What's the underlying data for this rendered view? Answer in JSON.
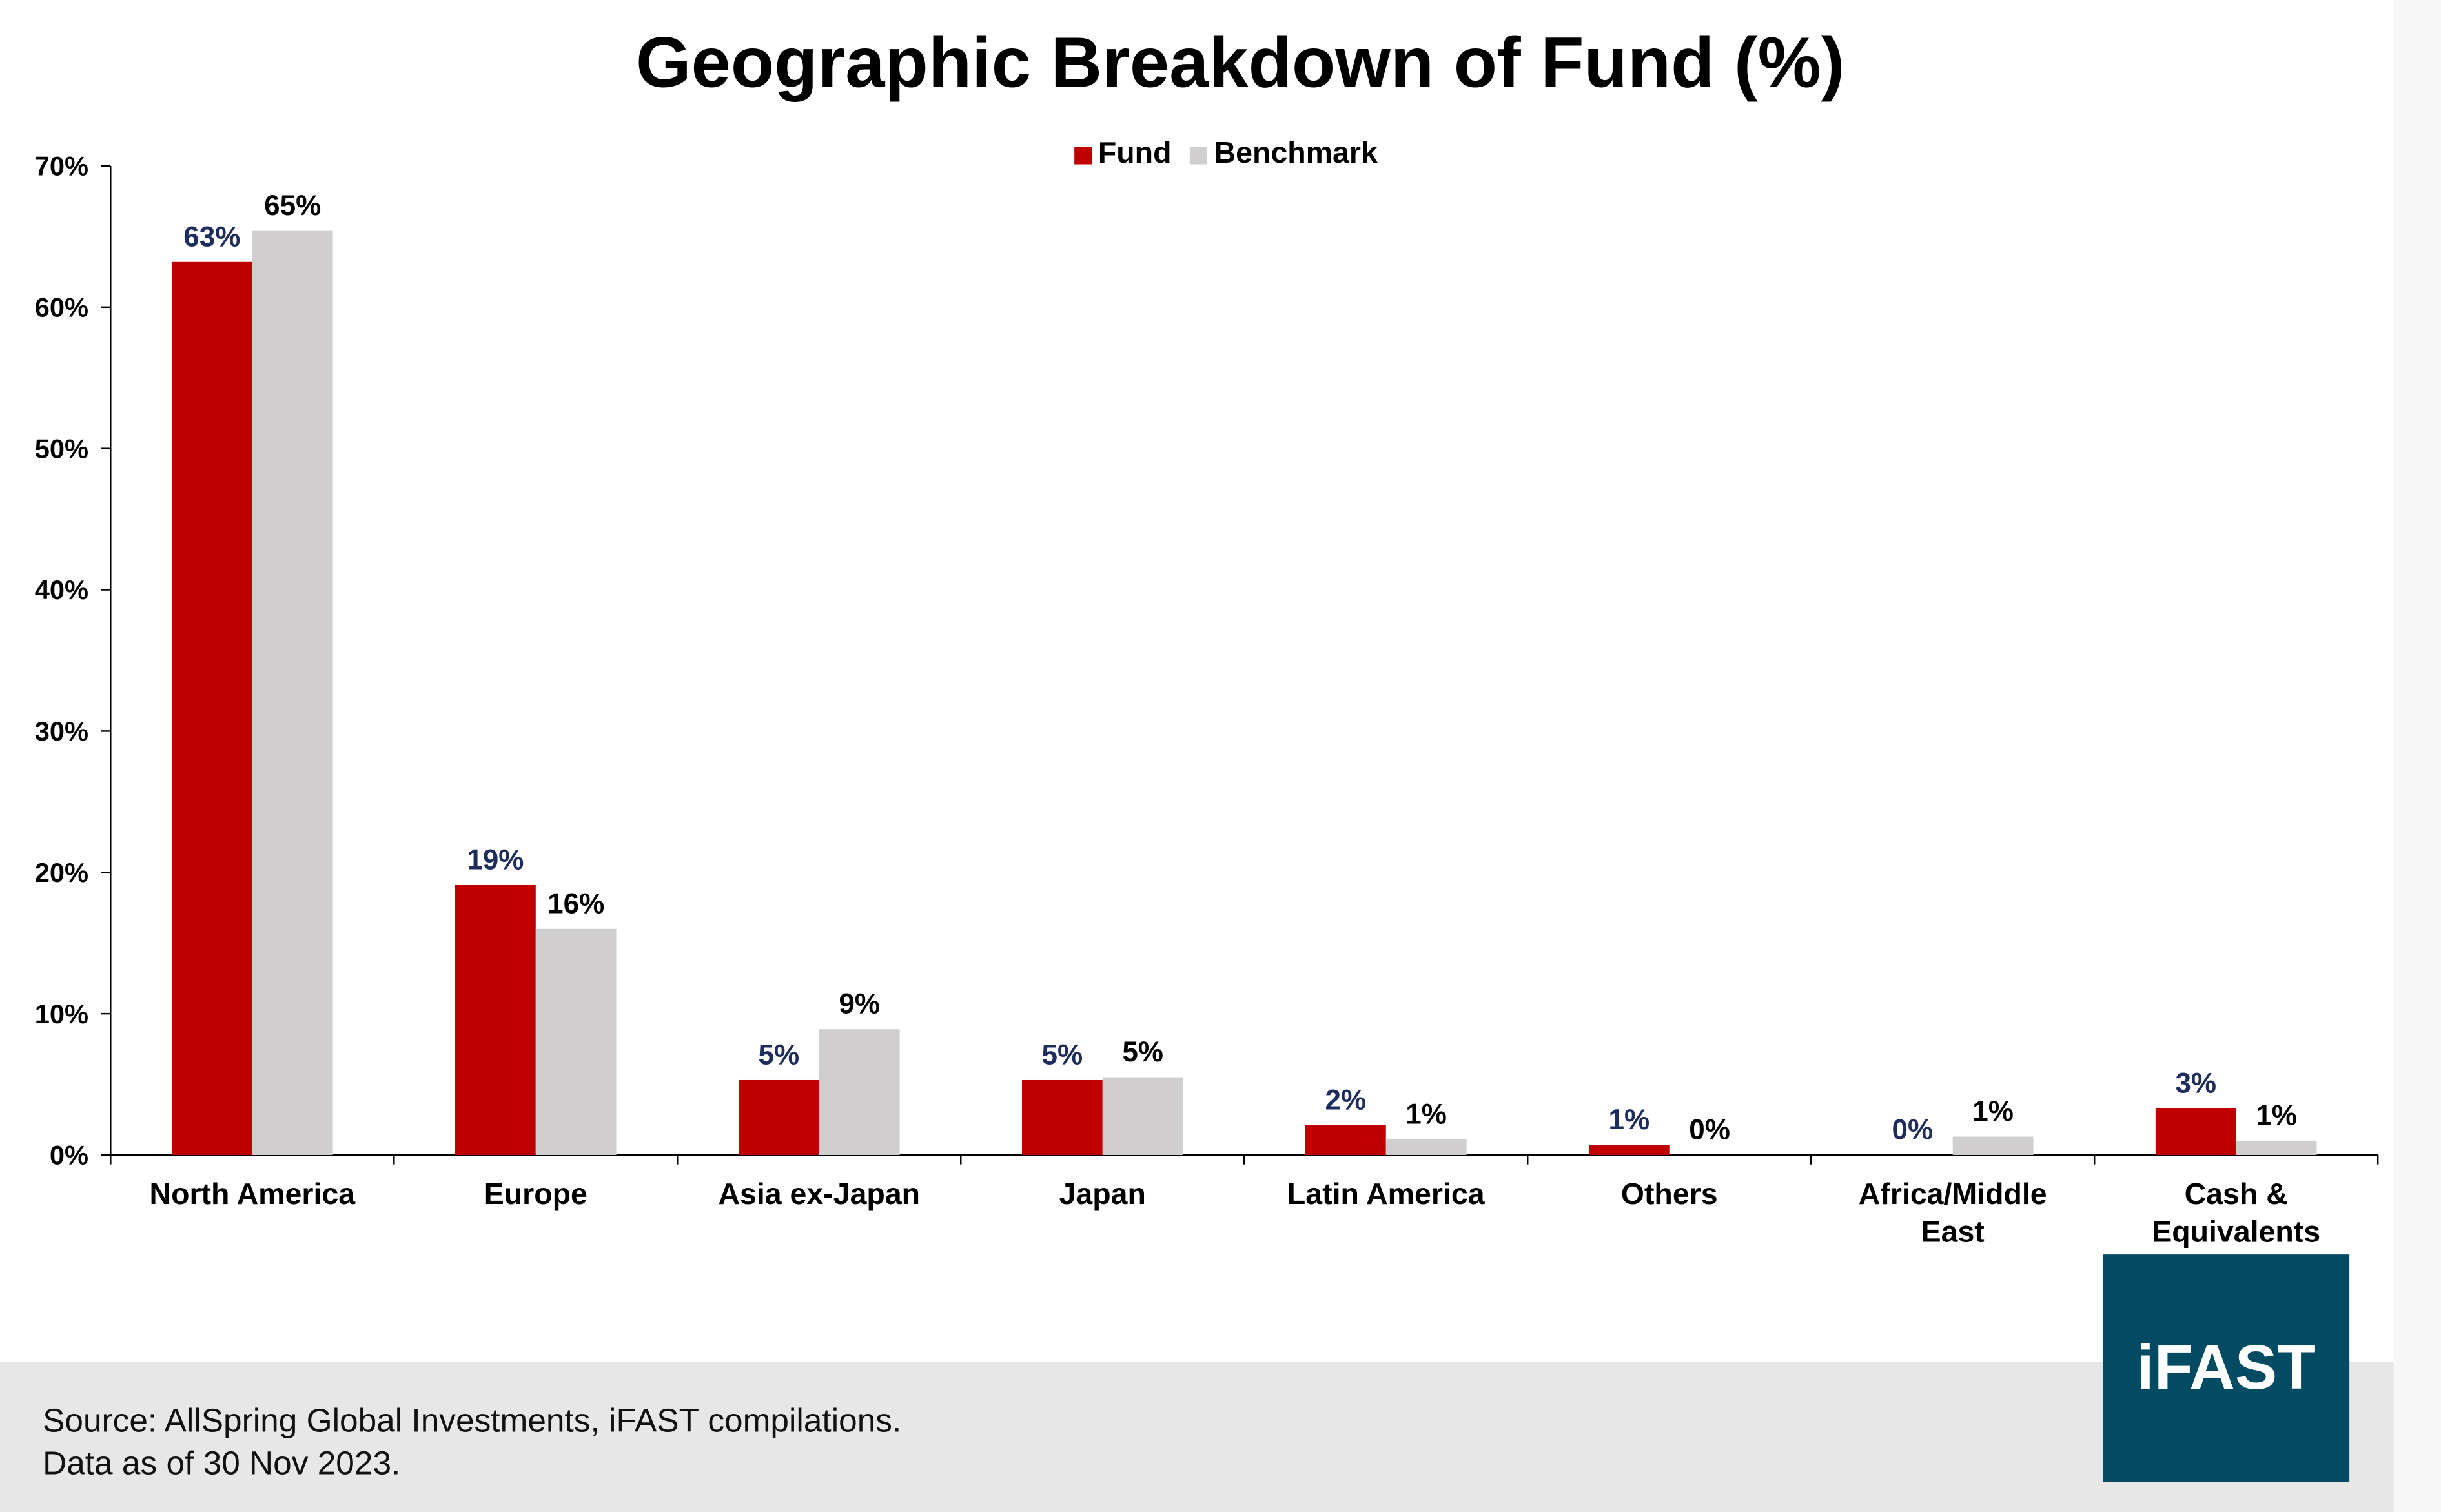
{
  "chart_data": {
    "type": "bar",
    "title": "Geographic Breakdown of Fund (%)",
    "xlabel": "",
    "ylabel": "",
    "ylim": [
      0,
      70
    ],
    "yticks": [
      "0%",
      "10%",
      "20%",
      "30%",
      "40%",
      "50%",
      "60%",
      "70%"
    ],
    "categories": [
      "North America",
      "Europe",
      "Asia ex-Japan",
      "Japan",
      "Latin America",
      "Others",
      "Africa/Middle East",
      "Cash & Equivalents"
    ],
    "category_lines": [
      [
        "North America"
      ],
      [
        "Europe"
      ],
      [
        "Asia ex-Japan"
      ],
      [
        "Japan"
      ],
      [
        "Latin America"
      ],
      [
        "Others"
      ],
      [
        "Africa/Middle",
        "East"
      ],
      [
        "Cash &",
        "Equivalents"
      ]
    ],
    "series": [
      {
        "name": "Fund",
        "color": "#c00000",
        "label_color": "#1f2d5c",
        "values": [
          63.2,
          19.1,
          5.3,
          5.3,
          2.1,
          0.7,
          0.0,
          3.3
        ],
        "labels": [
          "63%",
          "19%",
          "5%",
          "5%",
          "2%",
          "1%",
          "0%",
          "3%"
        ]
      },
      {
        "name": "Benchmark",
        "color": "#d0cece",
        "label_color": "#000000",
        "values": [
          65.4,
          16.0,
          8.9,
          5.5,
          1.1,
          0.0,
          1.3,
          1.0
        ],
        "labels": [
          "65%",
          "16%",
          "9%",
          "5%",
          "1%",
          "0%",
          "1%",
          "1%"
        ]
      }
    ],
    "legend_position": "top-center",
    "grid": false
  },
  "footer": {
    "source": "Source: AllSpring Global Investments, iFAST compilations.",
    "date": "Data as of 30 Nov 2023."
  },
  "logo": {
    "text": "iFAST",
    "color": "#034a63"
  }
}
